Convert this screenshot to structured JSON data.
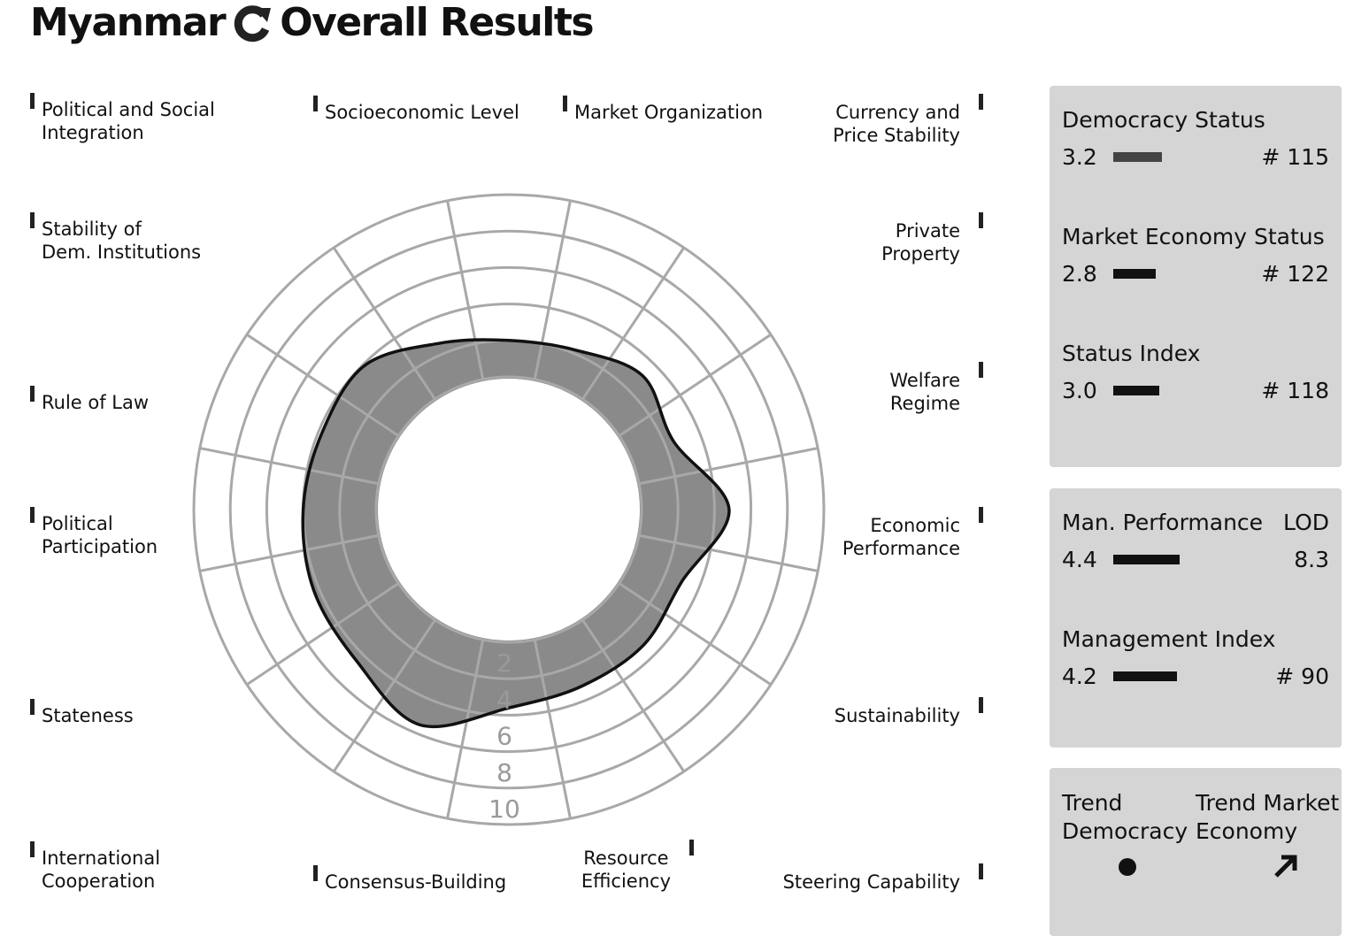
{
  "header": {
    "country": "Myanmar",
    "title": "Overall Results",
    "icon": "refresh-icon"
  },
  "chart_data": {
    "type": "radar",
    "title": "Myanmar Overall Results",
    "rlim": [
      0,
      10
    ],
    "ring_ticks": [
      "2",
      "4",
      "6",
      "8",
      "10"
    ],
    "categories": [
      "Socioeconomic Level",
      "Market Organization",
      "Currency and Price Stability",
      "Private Property",
      "Welfare Regime",
      "Economic Performance",
      "Sustainability",
      "Steering Capability",
      "Resource Efficiency",
      "Consensus-Building",
      "International Cooperation",
      "Stateness",
      "Political Participation",
      "Rule of Law",
      "Stability of Dem. Institutions",
      "Political and Social Integration"
    ],
    "values": [
      2.6,
      2.0,
      2.2,
      3.1,
      2.5,
      4.8,
      3.0,
      3.2,
      3.2,
      3.6,
      5.5,
      4.5,
      4.3,
      4.0,
      3.8,
      3.9
    ]
  },
  "labels": {
    "psi": [
      "Political and Social",
      "Integration"
    ],
    "sel": "Socioeconomic Level",
    "mo": "Market Organization",
    "cps": [
      "Currency and",
      "Price Stability"
    ],
    "sdi": [
      "Stability of",
      "Dem. Institutions"
    ],
    "pp": [
      "Private",
      "Property"
    ],
    "rol": "Rule of Law",
    "wr": [
      "Welfare",
      "Regime"
    ],
    "ppart": [
      "Political",
      "Participation"
    ],
    "ep": [
      "Economic",
      "Performance"
    ],
    "st": "Stateness",
    "sus": "Sustainability",
    "ic": [
      "International",
      "Cooperation"
    ],
    "cb": "Consensus-Building",
    "re": [
      "Resource",
      "Efficiency"
    ],
    "sc": "Steering Capability"
  },
  "status": {
    "democracy": {
      "label": "Democracy Status",
      "value": "3.2",
      "rank": "# 115",
      "color": "#444444"
    },
    "market": {
      "label": "Market Economy Status",
      "value": "2.8",
      "rank": "# 122",
      "color": "#111111"
    },
    "index": {
      "label": "Status Index",
      "value": "3.0",
      "rank": "# 118",
      "color": "#111111"
    }
  },
  "management": {
    "performance": {
      "label": "Man. Performance",
      "value": "4.4",
      "lod_label": "LOD",
      "lod": "8.3"
    },
    "index": {
      "label": "Management Index",
      "value": "4.2",
      "rank": "# 90"
    }
  },
  "trend": {
    "democracy": [
      "Trend",
      "Democracy"
    ],
    "democracy_icon": "dot-icon",
    "market": [
      "Trend Market",
      "Economy"
    ],
    "market_icon": "arrow-up-right-icon"
  }
}
